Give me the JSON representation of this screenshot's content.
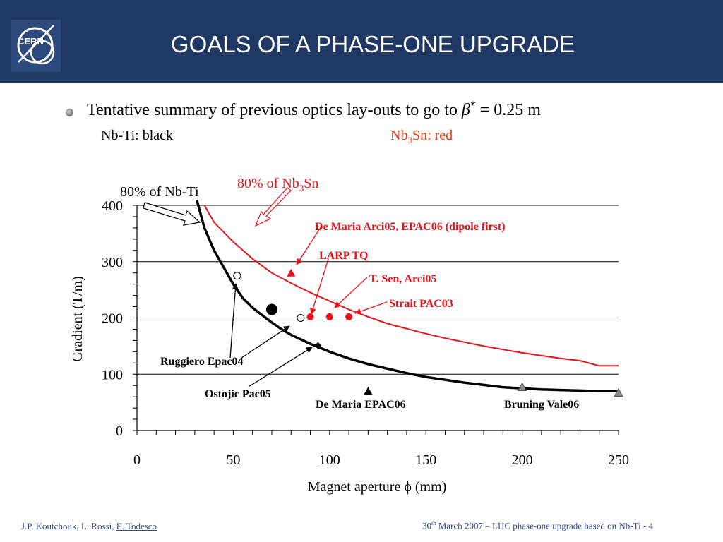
{
  "header": {
    "title": "GOALS OF A PHASE-ONE UPGRADE",
    "logo_text": "CERN"
  },
  "bullet": {
    "text_pre": "Tentative summary of previous optics lay-outs to go to ",
    "beta": "β",
    "star": "*",
    "text_post": " = 0.25 m",
    "black_note": "Nb-Ti: black",
    "red_note_prefix": "Nb",
    "red_note_sub": "3",
    "red_note_suffix": "Sn: red"
  },
  "colors": {
    "header_bg": "#1f3864",
    "red": "#e8131a",
    "black": "#000000",
    "footer": "#2e4b8c"
  },
  "chart_data": {
    "type": "scatter",
    "xlabel": "Magnet aperture ϕ (mm)",
    "ylabel": "Gradient (T/m)",
    "xlim": [
      0,
      250
    ],
    "ylim": [
      0,
      400
    ],
    "x_ticks": [
      "0",
      "50",
      "100",
      "150",
      "200",
      "250"
    ],
    "y_ticks": [
      "0",
      "100",
      "200",
      "300",
      "400"
    ],
    "grid": "horizontal",
    "curves": [
      {
        "name": "80% of Nb-Ti",
        "color": "#000000",
        "points": [
          [
            31,
            410
          ],
          [
            35,
            360
          ],
          [
            40,
            320
          ],
          [
            45,
            290
          ],
          [
            50,
            260
          ],
          [
            55,
            235
          ],
          [
            60,
            218
          ],
          [
            65,
            205
          ],
          [
            70,
            192
          ],
          [
            75,
            180
          ],
          [
            80,
            170
          ],
          [
            85,
            162
          ],
          [
            90,
            154
          ],
          [
            95,
            147
          ],
          [
            100,
            140
          ],
          [
            110,
            128
          ],
          [
            120,
            118
          ],
          [
            130,
            110
          ],
          [
            140,
            102
          ],
          [
            150,
            95
          ],
          [
            160,
            90
          ],
          [
            170,
            85
          ],
          [
            180,
            81
          ],
          [
            190,
            77
          ],
          [
            200,
            75
          ],
          [
            210,
            73
          ],
          [
            220,
            72
          ],
          [
            230,
            71
          ],
          [
            240,
            70
          ],
          [
            250,
            70
          ]
        ]
      },
      {
        "name": "80% of Nb3Sn",
        "color": "#e8131a",
        "points": [
          [
            35,
            400
          ],
          [
            40,
            370
          ],
          [
            50,
            335
          ],
          [
            60,
            305
          ],
          [
            70,
            280
          ],
          [
            80,
            262
          ],
          [
            90,
            245
          ],
          [
            100,
            230
          ],
          [
            110,
            215
          ],
          [
            120,
            202
          ],
          [
            130,
            190
          ],
          [
            140,
            181
          ],
          [
            150,
            172
          ],
          [
            160,
            164
          ],
          [
            170,
            157
          ],
          [
            180,
            150
          ],
          [
            190,
            144
          ],
          [
            200,
            138
          ],
          [
            210,
            133
          ],
          [
            220,
            128
          ],
          [
            230,
            124
          ],
          [
            240,
            115
          ],
          [
            250,
            115
          ]
        ]
      }
    ],
    "points": [
      {
        "x": 52,
        "y": 275,
        "marker": "open-circle",
        "color": "#000000"
      },
      {
        "x": 70,
        "y": 215,
        "marker": "big-filled-circle",
        "color": "#000000"
      },
      {
        "x": 85,
        "y": 200,
        "marker": "open-circle",
        "color": "#000000"
      },
      {
        "x": 94,
        "y": 151,
        "marker": "diamond",
        "color": "#000000"
      },
      {
        "x": 120,
        "y": 70,
        "marker": "triangle",
        "color": "#000000"
      },
      {
        "x": 200,
        "y": 77,
        "marker": "triangle",
        "color": "#8c8c8c"
      },
      {
        "x": 250,
        "y": 67,
        "marker": "triangle",
        "color": "#8c8c8c"
      },
      {
        "x": 80,
        "y": 280,
        "marker": "triangle",
        "color": "#e8131a"
      },
      {
        "x": 90,
        "y": 202,
        "marker": "filled-circle",
        "color": "#e8131a"
      },
      {
        "x": 100,
        "y": 202,
        "marker": "filled-circle",
        "color": "#e8131a"
      },
      {
        "x": 110,
        "y": 202,
        "marker": "filled-circle",
        "color": "#e8131a"
      }
    ],
    "annotations": [
      {
        "text": "80% of Nb-Ti",
        "color": "#000000"
      },
      {
        "text": "80% of Nb",
        "sub": "3",
        "suffix": "Sn",
        "color": "#e8131a"
      },
      {
        "text": "De Maria Arci05, EPAC06 (dipole first)",
        "color": "#e8131a"
      },
      {
        "text": "LARP TQ",
        "color": "#e8131a"
      },
      {
        "text": "T. Sen, Arci05",
        "color": "#e8131a"
      },
      {
        "text": "Strait PAC03",
        "color": "#e8131a"
      },
      {
        "text": "Ruggiero Epac04",
        "color": "#000000"
      },
      {
        "text": "Ostojic Pac05",
        "color": "#000000"
      },
      {
        "text": "De Maria EPAC06",
        "color": "#000000"
      },
      {
        "text": "Bruning Vale06",
        "color": "#000000"
      }
    ]
  },
  "footer": {
    "authors": "J.P. Koutchouk, L. Rossi, ",
    "author_link": "E. Todesco",
    "date_day": "30",
    "date_sup": "th",
    "date_rest": " March 2007 – LHC phase-one upgrade based on Nb-Ti  - 4"
  }
}
